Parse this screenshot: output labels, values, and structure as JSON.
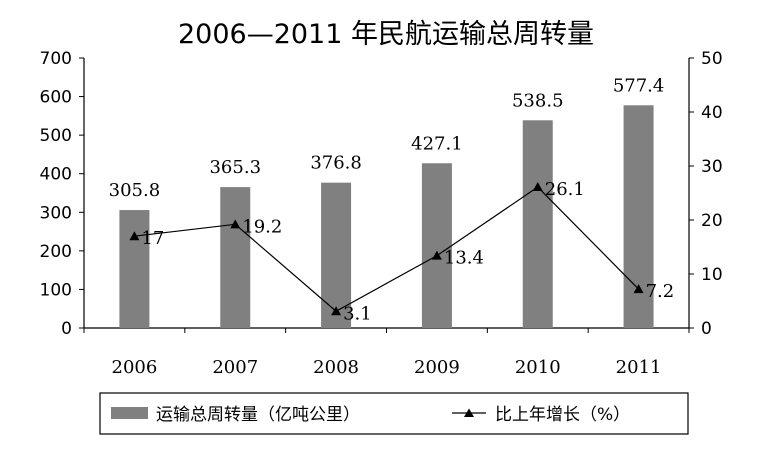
{
  "chart_data": {
    "type": "bar",
    "title": "2006—2011 年民航运输总周转量",
    "categories": [
      "2006",
      "2007",
      "2008",
      "2009",
      "2010",
      "2011"
    ],
    "series": [
      {
        "name": "运输总周转量（亿吨公里）",
        "type": "bar",
        "axis": "left",
        "values": [
          305.8,
          365.3,
          376.8,
          427.1,
          538.5,
          577.4
        ],
        "labels": [
          "305.8",
          "365.3",
          "376.8",
          "427.1",
          "538.5",
          "577.4"
        ],
        "color": "#808080"
      },
      {
        "name": "比上年增长（%）",
        "type": "line",
        "axis": "right",
        "marker": "triangle",
        "values": [
          17,
          19.2,
          3.1,
          13.4,
          26.1,
          7.2
        ],
        "labels": [
          "17",
          "19.2",
          "3.1",
          "13.4",
          "26.1",
          "7.2"
        ],
        "color": "#000000"
      }
    ],
    "y_left": {
      "range": [
        0,
        700
      ],
      "ticks": [
        "0",
        "100",
        "200",
        "300",
        "400",
        "500",
        "600",
        "700"
      ]
    },
    "y_right": {
      "range": [
        0,
        50
      ],
      "ticks": [
        "0",
        "10",
        "20",
        "30",
        "40",
        "50"
      ]
    },
    "grid": false,
    "legend_position": "bottom"
  }
}
